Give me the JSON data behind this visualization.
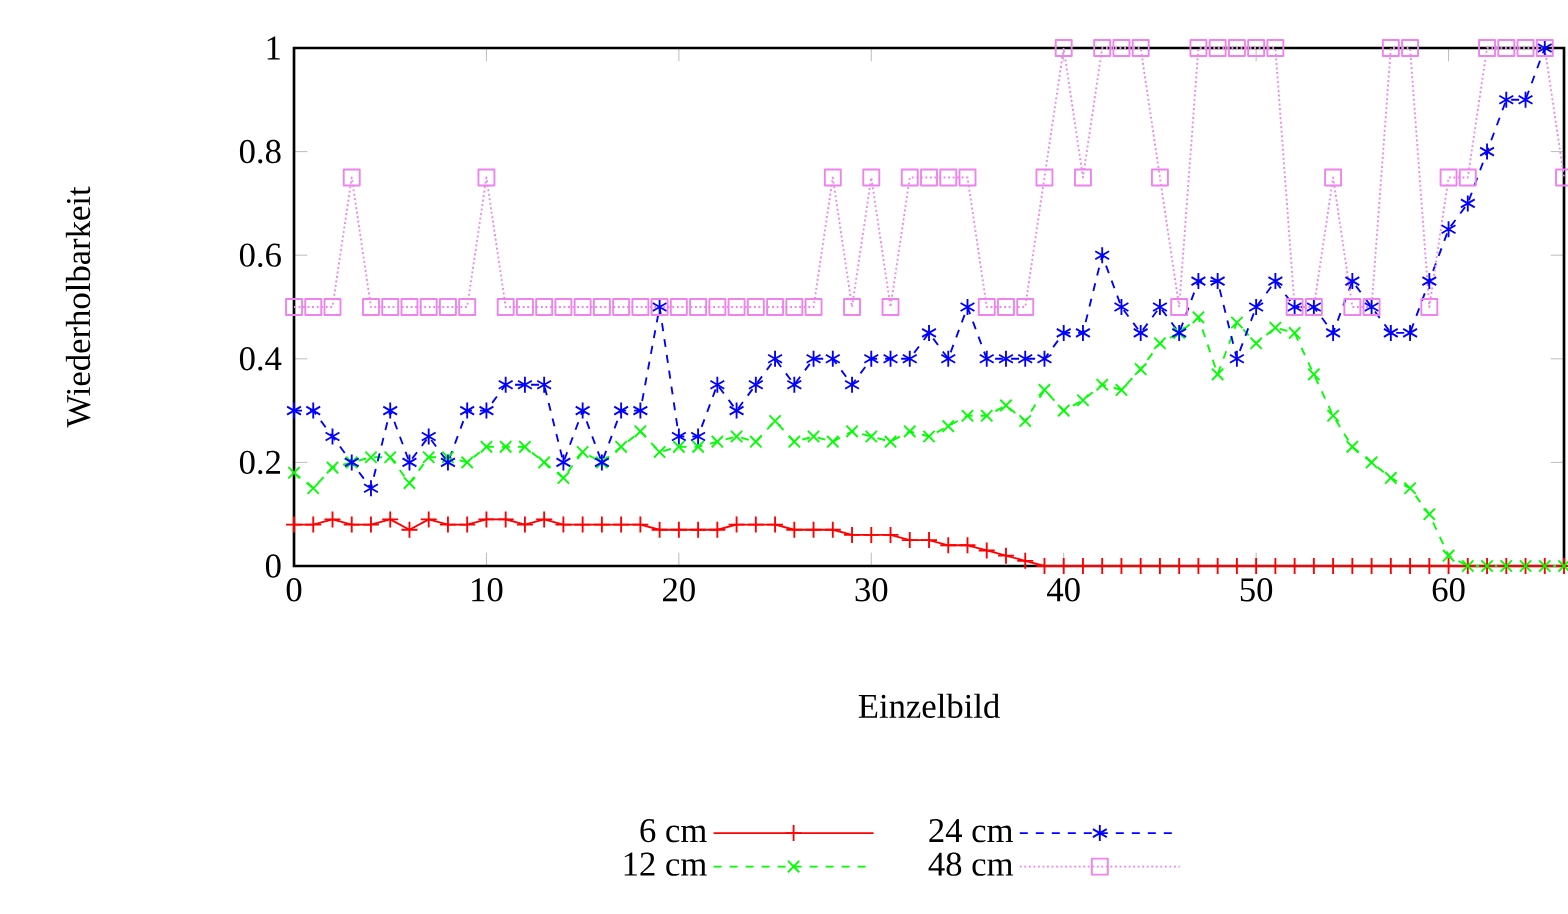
{
  "chart_data": {
    "type": "line",
    "xlabel": "Einzelbild",
    "ylabel": "Wiederholbarkeit",
    "x": [
      0,
      1,
      2,
      3,
      4,
      5,
      6,
      7,
      8,
      9,
      10,
      11,
      12,
      13,
      14,
      15,
      16,
      17,
      18,
      19,
      20,
      21,
      22,
      23,
      24,
      25,
      26,
      27,
      28,
      29,
      30,
      31,
      32,
      33,
      34,
      35,
      36,
      37,
      38,
      39,
      40,
      41,
      42,
      43,
      44,
      45,
      46,
      47,
      48,
      49,
      50,
      51,
      52,
      53,
      54,
      55,
      56,
      57,
      58,
      59,
      60,
      61,
      62,
      63,
      64,
      65,
      66
    ],
    "series": [
      {
        "name": "6 cm",
        "color": "#ff0000",
        "marker": "plus",
        "line_style": "solid",
        "values": [
          0.08,
          0.08,
          0.09,
          0.08,
          0.08,
          0.09,
          0.07,
          0.09,
          0.08,
          0.08,
          0.09,
          0.09,
          0.08,
          0.09,
          0.08,
          0.08,
          0.08,
          0.08,
          0.08,
          0.07,
          0.07,
          0.07,
          0.07,
          0.08,
          0.08,
          0.08,
          0.07,
          0.07,
          0.07,
          0.06,
          0.06,
          0.06,
          0.05,
          0.05,
          0.04,
          0.04,
          0.03,
          0.02,
          0.01,
          0,
          0,
          0,
          0,
          0,
          0,
          0,
          0,
          0,
          0,
          0,
          0,
          0,
          0,
          0,
          0,
          0,
          0,
          0,
          0,
          0,
          0,
          0,
          0,
          0,
          0,
          0,
          0
        ]
      },
      {
        "name": "12 cm",
        "color": "#00ff00",
        "marker": "cross",
        "line_style": "dashed",
        "values": [
          0.18,
          0.15,
          0.19,
          0.2,
          0.21,
          0.21,
          0.16,
          0.21,
          0.21,
          0.2,
          0.23,
          0.23,
          0.23,
          0.2,
          0.17,
          0.22,
          0.2,
          0.23,
          0.26,
          0.22,
          0.23,
          0.23,
          0.24,
          0.25,
          0.24,
          0.28,
          0.24,
          0.25,
          0.24,
          0.26,
          0.25,
          0.24,
          0.26,
          0.25,
          0.27,
          0.29,
          0.29,
          0.31,
          0.28,
          0.34,
          0.3,
          0.32,
          0.35,
          0.34,
          0.38,
          0.43,
          0.45,
          0.48,
          0.37,
          0.47,
          0.43,
          0.46,
          0.45,
          0.37,
          0.29,
          0.23,
          0.2,
          0.17,
          0.15,
          0.1,
          0.02,
          0,
          0,
          0,
          0,
          0,
          0
        ]
      },
      {
        "name": "24 cm",
        "color": "#0000ff",
        "marker": "cross",
        "line_style": "dashed",
        "values": [
          0.3,
          0.3,
          0.25,
          0.2,
          0.15,
          0.3,
          0.2,
          0.25,
          0.2,
          0.3,
          0.3,
          0.35,
          0.35,
          0.35,
          0.2,
          0.3,
          0.2,
          0.3,
          0.3,
          0.5,
          0.25,
          0.25,
          0.35,
          0.3,
          0.35,
          0.4,
          0.35,
          0.4,
          0.4,
          0.35,
          0.4,
          0.4,
          0.4,
          0.45,
          0.4,
          0.5,
          0.4,
          0.4,
          0.4,
          0.4,
          0.45,
          0.45,
          0.6,
          0.5,
          0.45,
          0.5,
          0.45,
          0.55,
          0.55,
          0.4,
          0.5,
          0.55,
          0.5,
          0.5,
          0.45,
          0.55,
          0.5,
          0.45,
          0.45,
          0.55,
          0.65,
          0.7,
          0.8,
          0.9,
          0.9,
          1,
          null
        ]
      },
      {
        "name": "48 cm",
        "color": "#ee82ee",
        "marker": "square",
        "line_style": "dotted",
        "values": [
          0.5,
          0.5,
          0.5,
          0.75,
          0.5,
          0.5,
          0.5,
          0.5,
          0.5,
          0.5,
          0.75,
          0.5,
          0.5,
          0.5,
          0.5,
          0.5,
          0.5,
          0.5,
          0.5,
          0.5,
          0.5,
          0.5,
          0.5,
          0.5,
          0.5,
          0.5,
          0.5,
          0.5,
          0.75,
          0.5,
          0.75,
          0.5,
          0.75,
          0.75,
          0.75,
          0.75,
          0.5,
          0.5,
          0.5,
          0.75,
          1,
          0.75,
          1,
          1,
          1,
          0.75,
          0.5,
          1,
          1,
          1,
          1,
          1,
          0.5,
          0.5,
          0.75,
          0.5,
          0.5,
          1,
          1,
          0.5,
          0.75,
          0.75,
          1,
          1,
          1,
          1,
          0.75
        ]
      }
    ],
    "xlim": [
      0,
      66
    ],
    "ylim": [
      0,
      1
    ],
    "xticks": [
      0,
      10,
      20,
      30,
      40,
      50,
      60
    ],
    "yticks": [
      0,
      0.2,
      0.4,
      0.6,
      0.8,
      1
    ],
    "grid": false,
    "legend": "bottom"
  }
}
